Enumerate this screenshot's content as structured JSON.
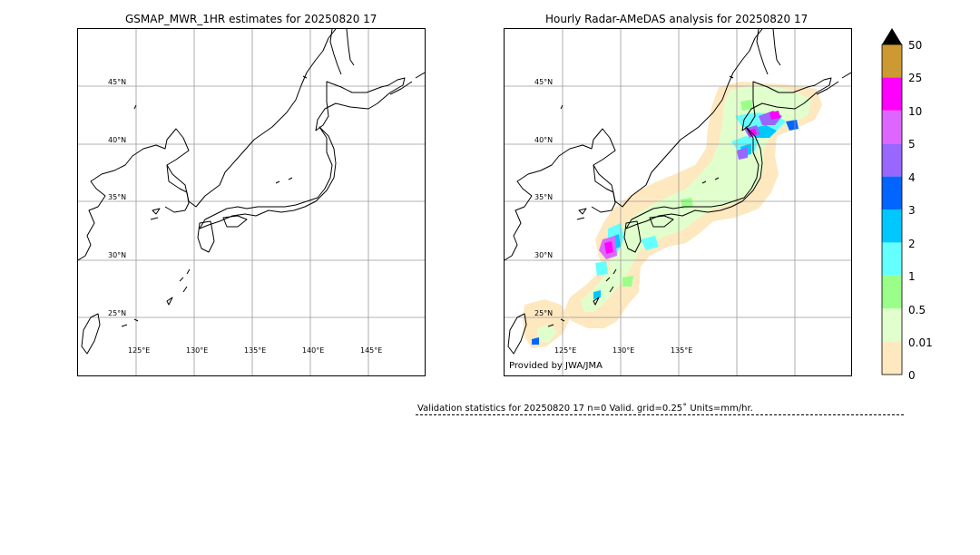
{
  "left_panel": {
    "title": "GSMAP_MWR_1HR estimates for 20250820 17",
    "lat_labels": [
      "45°N",
      "40°N",
      "35°N",
      "30°N",
      "25°N"
    ],
    "lon_labels": [
      "125°E",
      "130°E",
      "135°E",
      "140°E",
      "145°E"
    ]
  },
  "right_panel": {
    "title": "Hourly Radar-AMeDAS analysis for 20250820 17",
    "lat_labels": [
      "45°N",
      "40°N",
      "35°N",
      "30°N",
      "25°N"
    ],
    "lon_labels": [
      "125°E",
      "130°E",
      "135°E"
    ],
    "credit": "Provided by JWA/JMA"
  },
  "colorbar": {
    "units": "mm/hr",
    "levels": [
      "0",
      "0.01",
      "0.5",
      "1",
      "2",
      "3",
      "4",
      "5",
      "10",
      "25",
      "50"
    ],
    "colors": [
      "#fee8c0",
      "#e0ffcc",
      "#99ff88",
      "#66ffff",
      "#00c8ff",
      "#0066ff",
      "#9966ff",
      "#dd66ff",
      "#ff00ff",
      "#cc9933"
    ],
    "extend_color": "#000000"
  },
  "validation": {
    "text": "Validation statistics for 20250820 17  n=0 Valid. grid=0.25˚ Units=mm/hr."
  }
}
